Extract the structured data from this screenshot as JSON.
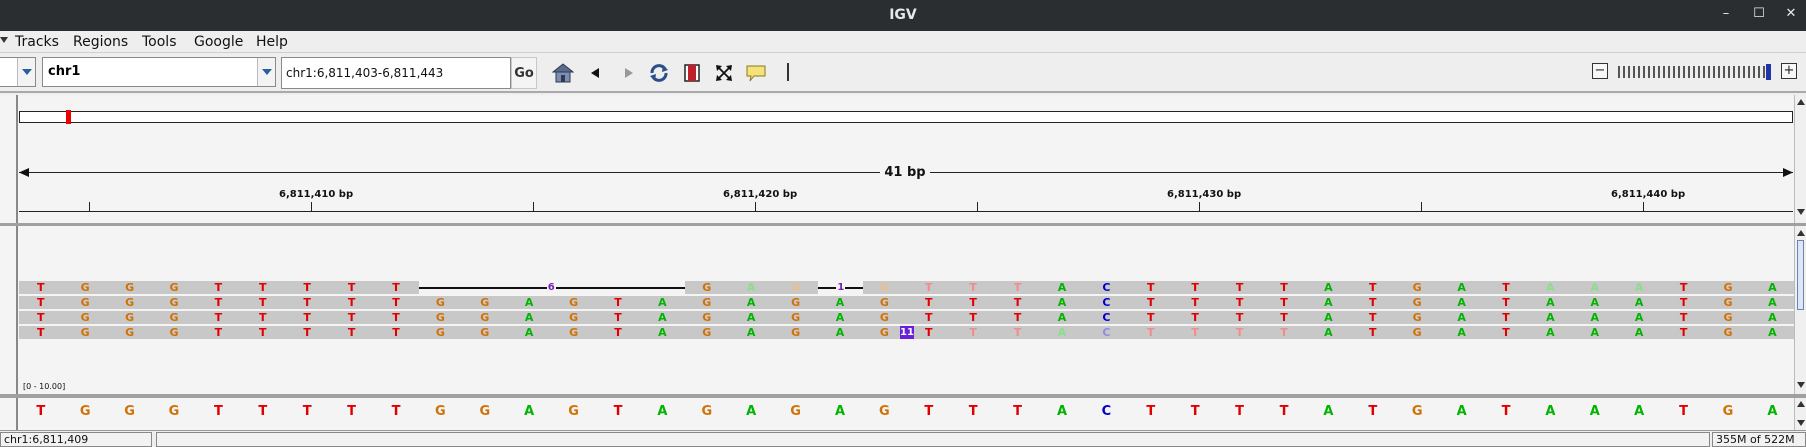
{
  "window": {
    "title": "IGV"
  },
  "menu": {
    "items": [
      "Tracks",
      "Regions",
      "Tools",
      "Google",
      "Help"
    ]
  },
  "toolbar": {
    "genome_value": "",
    "chromosome_value": "chr1",
    "locus_value": "chr1:6,811,403-6,811,443",
    "go_label": "Go",
    "icons": [
      "home-icon",
      "back-icon",
      "forward-icon",
      "refresh-icon",
      "roi-icon",
      "resize-icon",
      "popup-text-icon"
    ],
    "zoom_minus": "−",
    "zoom_plus": "+"
  },
  "ruler": {
    "span_label": "41 bp",
    "tick_labels": [
      "6,811,410 bp",
      "6,811,420 bp",
      "6,811,430 bp",
      "6,811,440 bp"
    ]
  },
  "alignments": {
    "range_label": "[0 - 10.00]",
    "deletion_labels": [
      "6",
      "1"
    ],
    "insertion_label": "11"
  },
  "reference_sequence": [
    "T",
    "G",
    "G",
    "G",
    "T",
    "T",
    "T",
    "T",
    "T",
    "G",
    "G",
    "A",
    "G",
    "T",
    "A",
    "G",
    "A",
    "G",
    "A",
    "G",
    "T",
    "T",
    "T",
    "A",
    "C",
    "T",
    "T",
    "T",
    "T",
    "A",
    "T",
    "G",
    "A",
    "T",
    "A",
    "A",
    "A",
    "T",
    "G",
    "A"
  ],
  "base_colors": {
    "A": "#00b400",
    "C": "#0000cc",
    "G": "#d17105",
    "T": "#e00000"
  },
  "status": {
    "position": "chr1:6,811,409",
    "message": "",
    "memory": "355M of 522M"
  }
}
